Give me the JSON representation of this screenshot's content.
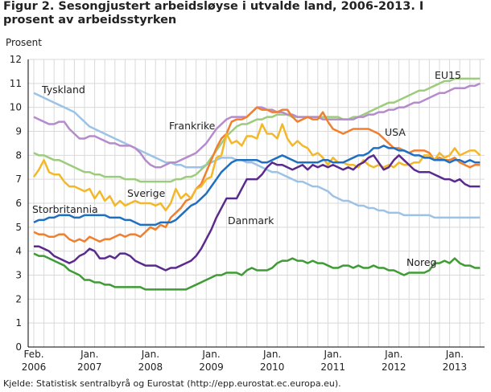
{
  "chart_data": {
    "type": "line",
    "title": "Figur 2. Sesongjustert arbeidsløyse i utvalde land, 2006-2013. I prosent av arbeidsstyrken",
    "y_label": "Prosent",
    "source": "Kjelde: Statistisk sentralbyrå og Eurostat  (http://epp.eurostat.ec.europa.eu).",
    "categories": [
      "Feb. 2006",
      null,
      null,
      null,
      null,
      null,
      null,
      null,
      null,
      null,
      null,
      "Jan. 2007",
      null,
      null,
      null,
      null,
      null,
      null,
      null,
      null,
      null,
      null,
      null,
      "Jan. 2008",
      null,
      null,
      null,
      null,
      null,
      null,
      null,
      null,
      null,
      null,
      null,
      "Jan. 2009",
      null,
      null,
      null,
      null,
      null,
      null,
      null,
      null,
      null,
      null,
      null,
      "Jan. 2010",
      null,
      null,
      null,
      null,
      null,
      null,
      null,
      null,
      null,
      null,
      null,
      "Jan. 2011",
      null,
      null,
      null,
      null,
      null,
      null,
      null,
      null,
      null,
      null,
      null,
      "Jan. 2012",
      null,
      null,
      null,
      null,
      null,
      null,
      null,
      null,
      null,
      null,
      null,
      "Jan. 2013",
      null,
      null,
      null,
      null,
      null
    ],
    "ylim": [
      0,
      12
    ],
    "yticks": [
      0,
      1,
      2,
      3,
      4,
      5,
      6,
      7,
      8,
      9,
      10,
      11,
      12
    ],
    "grid": true,
    "series": [
      {
        "name": "Tyskland",
        "color": "#9cc3e6",
        "values": [
          10.6,
          10.5,
          10.4,
          10.3,
          10.2,
          10.1,
          10.0,
          9.9,
          9.8,
          9.6,
          9.4,
          9.2,
          9.1,
          9.0,
          8.9,
          8.8,
          8.7,
          8.6,
          8.5,
          8.4,
          8.3,
          8.2,
          8.1,
          8.0,
          7.9,
          7.8,
          7.7,
          7.7,
          7.6,
          7.6,
          7.5,
          7.5,
          7.5,
          7.5,
          7.6,
          7.7,
          7.8,
          7.9,
          7.9,
          7.9,
          7.8,
          7.8,
          7.7,
          7.7,
          7.6,
          7.5,
          7.4,
          7.3,
          7.3,
          7.2,
          7.1,
          7.0,
          6.9,
          6.9,
          6.8,
          6.7,
          6.7,
          6.6,
          6.5,
          6.3,
          6.2,
          6.1,
          6.1,
          6.0,
          5.9,
          5.9,
          5.8,
          5.8,
          5.7,
          5.7,
          5.6,
          5.6,
          5.6,
          5.5,
          5.5,
          5.5,
          5.5,
          5.5,
          5.5,
          5.4,
          5.4,
          5.4,
          5.4,
          5.4,
          5.4,
          5.4,
          5.4,
          5.4,
          5.4
        ]
      },
      {
        "name": "EU15",
        "color": "#9ccc7c",
        "values": [
          8.1,
          8.0,
          8.0,
          7.9,
          7.8,
          7.8,
          7.7,
          7.6,
          7.5,
          7.4,
          7.3,
          7.3,
          7.2,
          7.2,
          7.1,
          7.1,
          7.1,
          7.1,
          7.0,
          7.0,
          7.0,
          6.9,
          6.9,
          6.9,
          6.9,
          6.9,
          6.9,
          6.9,
          7.0,
          7.0,
          7.1,
          7.1,
          7.2,
          7.4,
          7.6,
          7.9,
          8.2,
          8.5,
          8.8,
          9.0,
          9.2,
          9.3,
          9.3,
          9.4,
          9.5,
          9.5,
          9.6,
          9.6,
          9.7,
          9.7,
          9.7,
          9.6,
          9.6,
          9.6,
          9.6,
          9.6,
          9.6,
          9.6,
          9.6,
          9.6,
          9.6,
          9.5,
          9.5,
          9.6,
          9.6,
          9.7,
          9.8,
          9.9,
          10.0,
          10.1,
          10.2,
          10.2,
          10.3,
          10.4,
          10.5,
          10.6,
          10.7,
          10.7,
          10.8,
          10.9,
          11.0,
          11.1,
          11.1,
          11.2,
          11.2,
          11.2,
          11.2,
          11.2,
          11.2
        ]
      },
      {
        "name": "Frankrike",
        "color": "#b58bcc",
        "values": [
          9.6,
          9.5,
          9.4,
          9.3,
          9.3,
          9.4,
          9.4,
          9.1,
          8.9,
          8.7,
          8.7,
          8.8,
          8.8,
          8.7,
          8.6,
          8.5,
          8.5,
          8.4,
          8.4,
          8.4,
          8.3,
          8.1,
          7.8,
          7.6,
          7.5,
          7.5,
          7.6,
          7.7,
          7.7,
          7.8,
          7.9,
          8.0,
          8.1,
          8.3,
          8.5,
          8.8,
          9.1,
          9.3,
          9.5,
          9.6,
          9.6,
          9.6,
          9.6,
          9.8,
          10.0,
          10.0,
          9.9,
          9.9,
          9.8,
          9.8,
          9.7,
          9.7,
          9.6,
          9.6,
          9.6,
          9.6,
          9.6,
          9.5,
          9.5,
          9.5,
          9.5,
          9.5,
          9.5,
          9.5,
          9.6,
          9.6,
          9.7,
          9.7,
          9.8,
          9.8,
          9.9,
          9.9,
          10.0,
          10.0,
          10.1,
          10.2,
          10.2,
          10.3,
          10.4,
          10.5,
          10.6,
          10.6,
          10.7,
          10.8,
          10.8,
          10.8,
          10.9,
          10.9,
          11.0
        ]
      },
      {
        "name": "USA",
        "color": "#f07f2e",
        "values": [
          4.8,
          4.7,
          4.7,
          4.6,
          4.6,
          4.7,
          4.7,
          4.5,
          4.4,
          4.5,
          4.4,
          4.6,
          4.5,
          4.4,
          4.5,
          4.5,
          4.6,
          4.7,
          4.6,
          4.7,
          4.7,
          4.6,
          4.8,
          5.0,
          4.9,
          5.1,
          5.0,
          5.4,
          5.6,
          5.8,
          6.1,
          6.2,
          6.6,
          6.8,
          7.3,
          7.8,
          8.3,
          8.7,
          8.9,
          9.4,
          9.5,
          9.5,
          9.6,
          9.8,
          10.0,
          9.9,
          9.9,
          9.8,
          9.8,
          9.9,
          9.9,
          9.6,
          9.4,
          9.5,
          9.6,
          9.5,
          9.5,
          9.8,
          9.4,
          9.1,
          9.0,
          8.9,
          9.0,
          9.1,
          9.1,
          9.1,
          9.1,
          9.0,
          8.9,
          8.7,
          8.5,
          8.3,
          8.3,
          8.2,
          8.1,
          8.2,
          8.2,
          8.2,
          8.1,
          7.8,
          7.9,
          7.8,
          7.8,
          7.9,
          7.7,
          7.6,
          7.5,
          7.6,
          7.6
        ]
      },
      {
        "name": "Sverige",
        "color": "#f3b829",
        "values": [
          7.1,
          7.4,
          7.8,
          7.3,
          7.2,
          7.2,
          6.9,
          6.7,
          6.7,
          6.6,
          6.5,
          6.6,
          6.2,
          6.5,
          6.1,
          6.3,
          5.9,
          6.1,
          5.9,
          6.0,
          6.1,
          6.0,
          6.0,
          6.0,
          5.9,
          6.0,
          5.7,
          6.0,
          6.6,
          6.2,
          6.4,
          6.2,
          6.6,
          6.7,
          7.0,
          7.1,
          7.9,
          8.0,
          8.9,
          8.5,
          8.6,
          8.4,
          8.8,
          8.8,
          8.7,
          9.3,
          8.9,
          8.9,
          8.7,
          9.3,
          8.7,
          8.4,
          8.6,
          8.4,
          8.3,
          8.0,
          8.1,
          7.9,
          7.6,
          7.9,
          7.7,
          7.7,
          7.6,
          7.6,
          7.5,
          7.8,
          7.6,
          7.5,
          7.6,
          7.5,
          7.6,
          7.5,
          7.7,
          7.6,
          7.6,
          7.7,
          7.7,
          8.0,
          8.0,
          7.8,
          8.1,
          7.9,
          8.0,
          8.3,
          8.0,
          8.1,
          8.2,
          8.2,
          8.0
        ]
      },
      {
        "name": "Storbritannia",
        "color": "#1f6fc1",
        "values": [
          5.2,
          5.3,
          5.3,
          5.4,
          5.4,
          5.5,
          5.5,
          5.5,
          5.4,
          5.4,
          5.5,
          5.5,
          5.5,
          5.5,
          5.5,
          5.4,
          5.4,
          5.4,
          5.3,
          5.3,
          5.2,
          5.1,
          5.1,
          5.1,
          5.1,
          5.2,
          5.2,
          5.2,
          5.3,
          5.5,
          5.7,
          5.9,
          6.0,
          6.2,
          6.4,
          6.7,
          7.0,
          7.3,
          7.5,
          7.7,
          7.8,
          7.8,
          7.8,
          7.8,
          7.8,
          7.7,
          7.7,
          7.8,
          7.9,
          8.0,
          7.9,
          7.8,
          7.7,
          7.7,
          7.7,
          7.7,
          7.7,
          7.8,
          7.8,
          7.7,
          7.7,
          7.7,
          7.8,
          7.9,
          8.0,
          8.0,
          8.1,
          8.3,
          8.3,
          8.4,
          8.3,
          8.3,
          8.2,
          8.2,
          8.1,
          8.0,
          8.0,
          7.9,
          7.9,
          7.8,
          7.8,
          7.8,
          7.7,
          7.8,
          7.8,
          7.7,
          7.8,
          7.7,
          7.7
        ]
      },
      {
        "name": "Danmark",
        "color": "#5a2a8c",
        "values": [
          4.2,
          4.2,
          4.1,
          4.0,
          3.8,
          3.7,
          3.6,
          3.5,
          3.6,
          3.8,
          3.9,
          4.1,
          4.0,
          3.7,
          3.7,
          3.8,
          3.7,
          3.9,
          3.9,
          3.8,
          3.6,
          3.5,
          3.4,
          3.4,
          3.4,
          3.3,
          3.2,
          3.3,
          3.3,
          3.4,
          3.5,
          3.6,
          3.8,
          4.1,
          4.5,
          4.9,
          5.4,
          5.8,
          6.2,
          6.2,
          6.2,
          6.6,
          7.0,
          7.0,
          7.0,
          7.2,
          7.5,
          7.7,
          7.6,
          7.6,
          7.5,
          7.4,
          7.5,
          7.6,
          7.4,
          7.6,
          7.5,
          7.6,
          7.5,
          7.6,
          7.5,
          7.4,
          7.5,
          7.4,
          7.6,
          7.7,
          7.9,
          8.0,
          7.7,
          7.4,
          7.5,
          7.8,
          8.0,
          7.8,
          7.6,
          7.4,
          7.3,
          7.3,
          7.3,
          7.2,
          7.1,
          7.0,
          7.0,
          6.9,
          7.0,
          6.8,
          6.7,
          6.7,
          6.7
        ]
      },
      {
        "name": "Noreg",
        "color": "#3f9c35",
        "values": [
          3.9,
          3.8,
          3.8,
          3.7,
          3.6,
          3.5,
          3.4,
          3.2,
          3.1,
          3.0,
          2.8,
          2.8,
          2.7,
          2.7,
          2.6,
          2.6,
          2.5,
          2.5,
          2.5,
          2.5,
          2.5,
          2.5,
          2.4,
          2.4,
          2.4,
          2.4,
          2.4,
          2.4,
          2.4,
          2.4,
          2.4,
          2.5,
          2.6,
          2.7,
          2.8,
          2.9,
          3.0,
          3.0,
          3.1,
          3.1,
          3.1,
          3.0,
          3.2,
          3.3,
          3.2,
          3.2,
          3.2,
          3.3,
          3.5,
          3.6,
          3.6,
          3.7,
          3.6,
          3.6,
          3.5,
          3.6,
          3.5,
          3.5,
          3.4,
          3.3,
          3.3,
          3.4,
          3.4,
          3.3,
          3.4,
          3.3,
          3.3,
          3.4,
          3.3,
          3.3,
          3.2,
          3.2,
          3.1,
          3.0,
          3.1,
          3.1,
          3.1,
          3.1,
          3.2,
          3.5,
          3.5,
          3.6,
          3.5,
          3.7,
          3.5,
          3.4,
          3.4,
          3.3,
          3.3
        ]
      }
    ]
  }
}
